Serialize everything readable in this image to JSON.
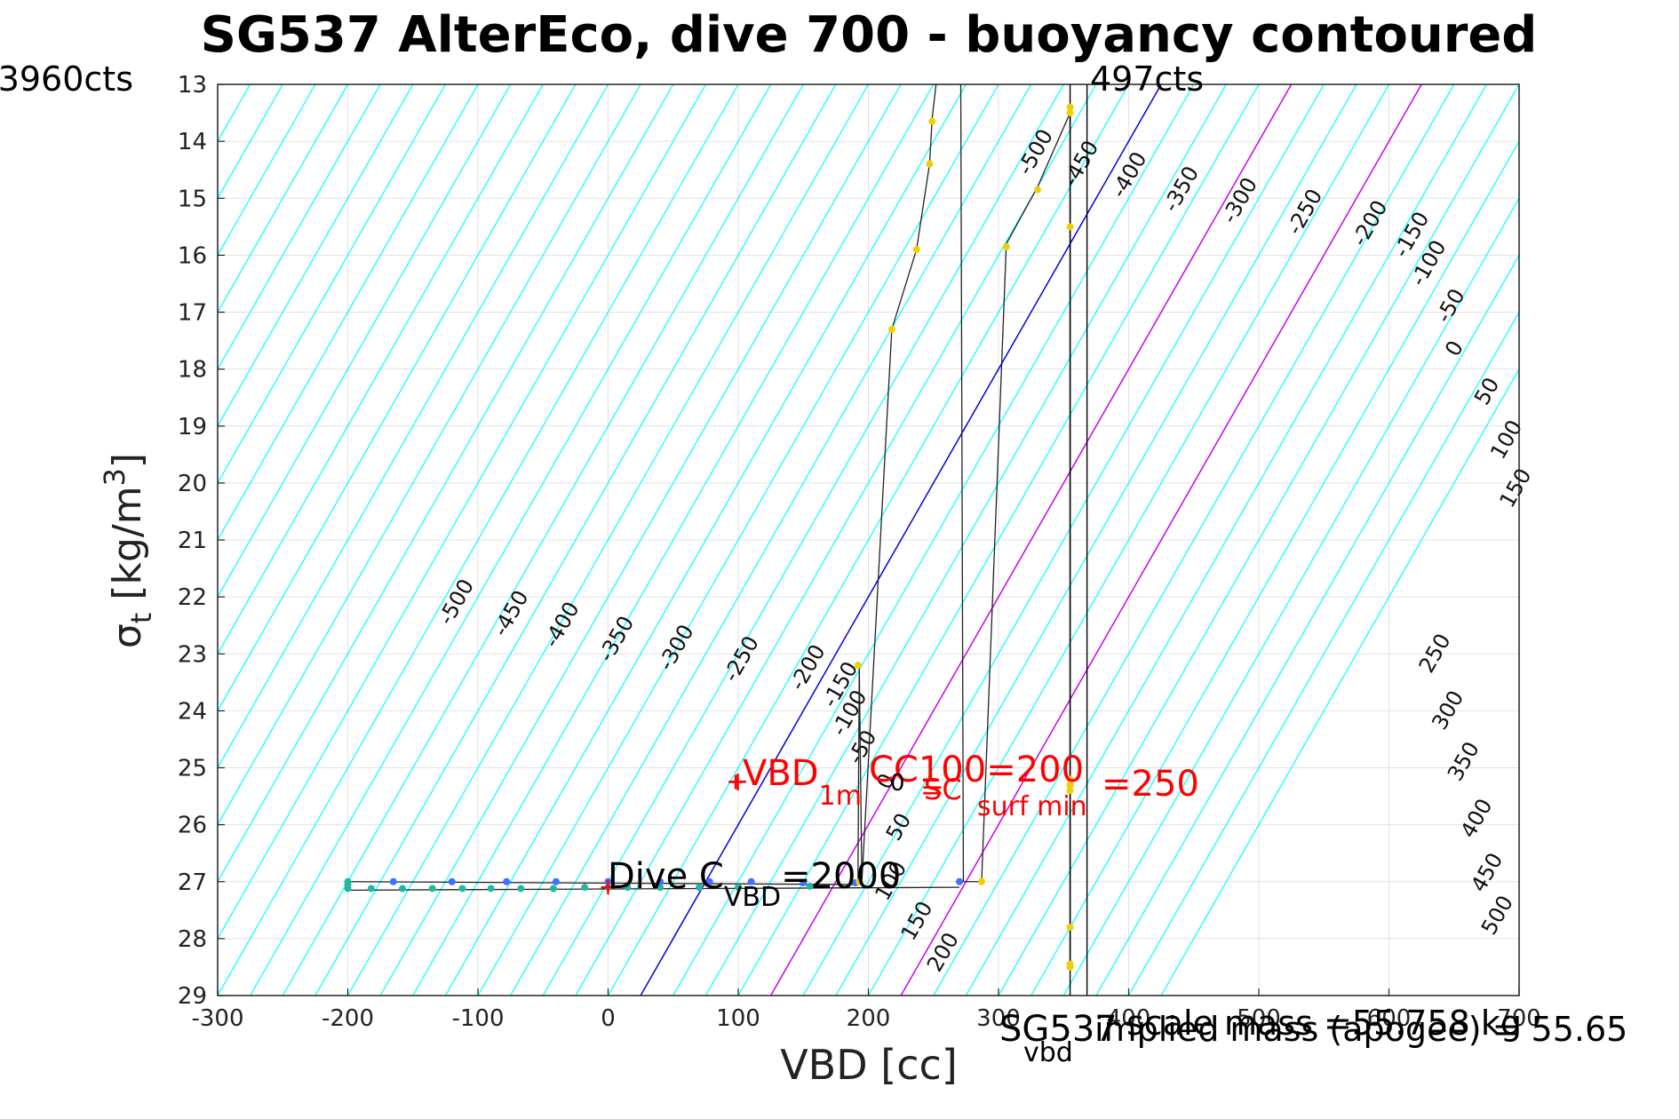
{
  "chart_data": {
    "type": "line",
    "title": "SG537 AlterEco, dive 700 - buoyancy contoured",
    "xlabel": "VBD [cc]",
    "ylabel_main": "σ",
    "ylabel_sub": "t",
    "ylabel_rest": " [kg/m",
    "ylabel_sup": "3",
    "ylabel_close": "]",
    "xlim": [
      -300,
      700
    ],
    "ylim": [
      13,
      29
    ],
    "y_reversed": true,
    "grid": true,
    "x_ticks": [
      -300,
      -200,
      -100,
      0,
      100,
      200,
      300,
      400,
      500,
      600,
      700
    ],
    "x_tick_labels": [
      "-300",
      "-200",
      "-100",
      "0",
      "100",
      "200",
      "300",
      "400",
      "500",
      "600",
      "700"
    ],
    "y_ticks": [
      13,
      14,
      15,
      16,
      17,
      18,
      19,
      20,
      21,
      22,
      23,
      24,
      25,
      26,
      27,
      28,
      29
    ],
    "y_tick_labels": [
      "13",
      "14",
      "15",
      "16",
      "17",
      "18",
      "19",
      "20",
      "21",
      "22",
      "23",
      "24",
      "25",
      "26",
      "27",
      "28",
      "29"
    ],
    "corner_labels": {
      "top_left": "3960cts",
      "top_right": "497cts"
    },
    "buoyancy_contours": {
      "slope_sigma_per_cc": 0.04,
      "zero_x_at_sigma_29": 25,
      "spacing_cc": 25,
      "offsets": [
        -1000,
        -975,
        -950,
        -925,
        -900,
        -875,
        -850,
        -825,
        -800,
        -775,
        -750,
        -725,
        -700,
        -675,
        -650,
        -625,
        -600,
        -575,
        -550,
        -525,
        -500,
        -475,
        -450,
        -425,
        -400,
        -375,
        -350,
        -325,
        -300,
        -275,
        -250,
        -225,
        -200,
        -175,
        -150,
        -125,
        -100,
        -75,
        -50,
        -25,
        0,
        25,
        50,
        75,
        100,
        125,
        150,
        175,
        200,
        225,
        250,
        275,
        300,
        325,
        350,
        375,
        400
      ],
      "color_default": "#00ffff",
      "color_zero": "#0000dd",
      "color_highlight": "#cc00ee",
      "highlight_offsets": [
        100,
        200
      ]
    },
    "contour_labels_upper": [
      "-500",
      "-450",
      "-400",
      "-350",
      "-300",
      "-250",
      "-200",
      "-150",
      "-100",
      "-50",
      "0",
      "50",
      "100",
      "150"
    ],
    "contour_labels_lower": [
      "250",
      "300",
      "350",
      "400",
      "450",
      "500"
    ],
    "contour_labels_mid": [
      "-500",
      "-450",
      "-400",
      "-350",
      "-300",
      "-250",
      "-200",
      "-150",
      "-100",
      "-50",
      "0",
      "50",
      "100",
      "150",
      "200"
    ],
    "series": [
      {
        "name": "",
        "color": "#222222",
        "x": [
          -200,
          190,
          192,
          193,
          195,
          218,
          237,
          247,
          249,
          252,
          271,
          273,
          283,
          287,
          306,
          330,
          355,
          355
        ],
        "y": [
          27.0,
          27.05,
          27.0,
          23.2,
          27.0,
          17.3,
          15.9,
          14.4,
          13.6,
          13.0,
          13.0,
          27.0,
          27.0,
          27.0,
          15.8,
          14.8,
          13.5,
          28.5
        ]
      },
      {
        "name": "",
        "color": "#222222",
        "x": [
          -200,
          270
        ],
        "y": [
          27.15,
          27.1
        ]
      },
      {
        "name": "",
        "color": "#222222",
        "x": [
          355,
          355
        ],
        "y": [
          13.5,
          28.5
        ]
      }
    ],
    "points_blue": {
      "color": "#4070ff",
      "x": [
        -165,
        -120,
        -78,
        -40,
        0,
        40,
        78,
        110,
        150,
        190,
        270
      ],
      "y": [
        27.0,
        27.0,
        27.0,
        27.0,
        27.0,
        27.0,
        27.0,
        27.0,
        27.02,
        27.02,
        27.0
      ]
    },
    "points_teal": {
      "color": "#20b8a0",
      "x": [
        -200,
        -200,
        -200,
        -182,
        -158,
        -135,
        -112,
        -90,
        -67,
        -42,
        -18,
        0,
        15,
        40,
        70,
        100,
        155
      ],
      "y": [
        27.0,
        27.05,
        27.12,
        27.12,
        27.12,
        27.12,
        27.12,
        27.12,
        27.12,
        27.12,
        27.1,
        27.1,
        27.1,
        27.1,
        27.1,
        27.1,
        27.08
      ]
    },
    "points_yellow": {
      "color": "#f0d000",
      "x": [
        192,
        193,
        218,
        237,
        247,
        249,
        287,
        306,
        330,
        355,
        355,
        355,
        355,
        355,
        355,
        355,
        355,
        355
      ],
      "y": [
        23.2,
        27.0,
        17.3,
        15.9,
        14.4,
        13.65,
        27.0,
        15.85,
        14.85,
        13.4,
        13.5,
        15.5,
        25.2,
        25.3,
        25.4,
        27.8,
        28.45,
        28.5
      ]
    },
    "vertical_lines": [
      {
        "x": 368,
        "color": "#000000"
      },
      {
        "x": 355,
        "color": "#000000"
      }
    ],
    "red_markers": [
      {
        "x": 0,
        "y": 27.1
      },
      {
        "x": 98,
        "y": 25.25
      }
    ],
    "annotations": {
      "dive_c": "Dive C",
      "dive_c_sub": "VBD",
      "dive_c_rest": "=2000",
      "vbd_1m_plus": "+",
      "vbd_1m": "VBD",
      "vbd_1m_sub": "1m",
      "cc100": "CC100=200",
      "eq_sign": "=",
      "zero_c": "0",
      "sc": "SC",
      "surf_min_sub": "surf min",
      "surf_min_val": "=250",
      "vbd_axis_sub": "vbd",
      "sg537_label": "SG537",
      "scale_mass": "scale mass =55.758 kg",
      "implied_mass": "implied mass (apogee) = 55.65"
    }
  }
}
